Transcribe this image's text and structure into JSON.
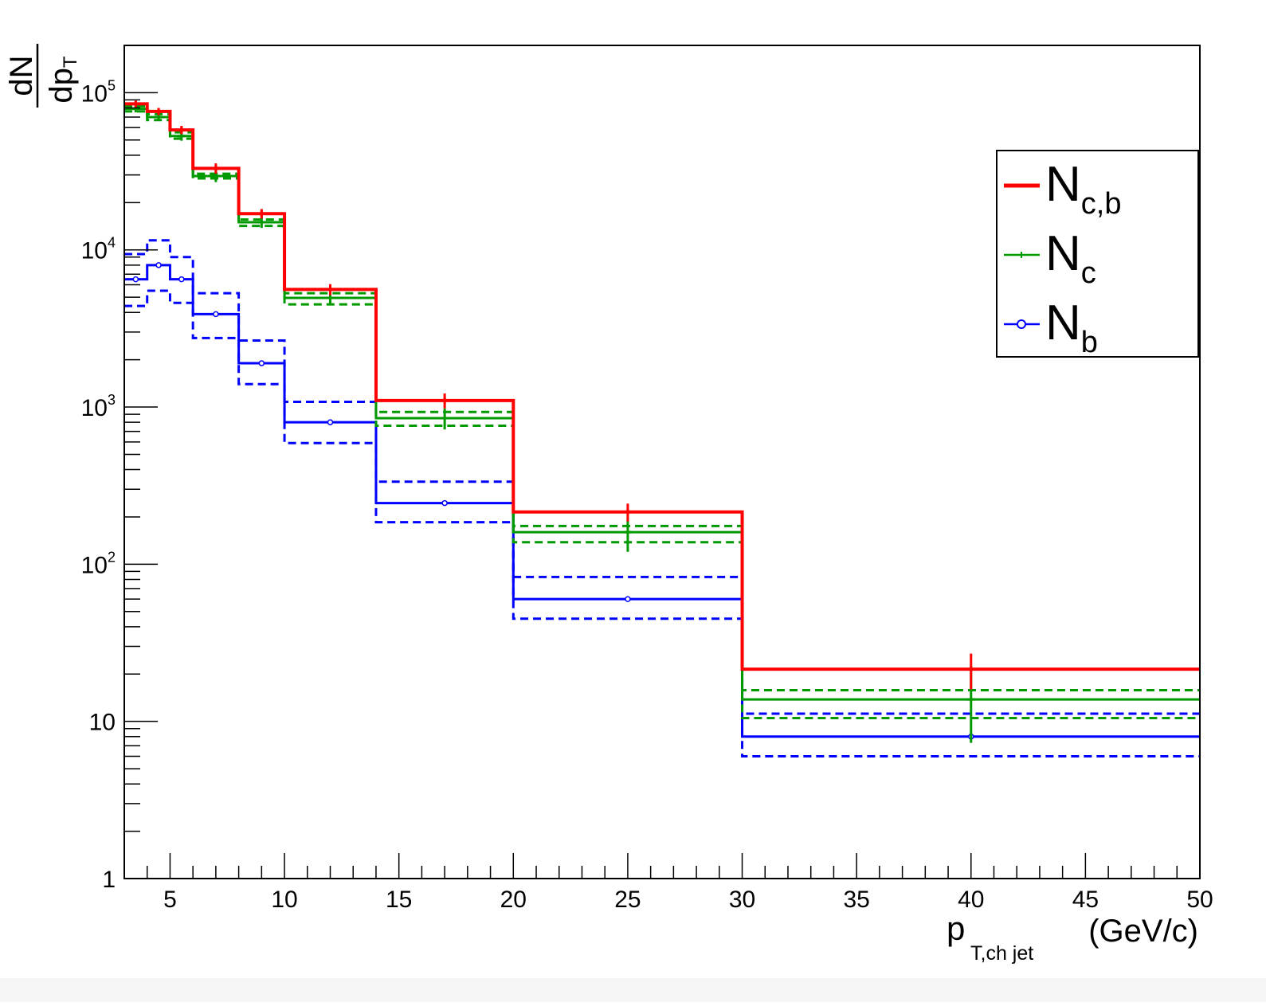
{
  "chart_data": {
    "type": "step",
    "xlabel": {
      "main": "p",
      "sub": "T,ch jet",
      "unit": "(GeV/c)"
    },
    "ylabel": {
      "numerator": "dN",
      "denominator_main": "dp",
      "denominator_sub": "T"
    },
    "xlim": [
      3,
      50
    ],
    "ylim": [
      1,
      200000
    ],
    "yscale": "log",
    "grid": false,
    "legend_position": "top-right",
    "x_ticks": [
      {
        "v": 5,
        "label": "5"
      },
      {
        "v": 10,
        "label": "10"
      },
      {
        "v": 15,
        "label": "15"
      },
      {
        "v": 20,
        "label": "20"
      },
      {
        "v": 25,
        "label": "25"
      },
      {
        "v": 30,
        "label": "30"
      },
      {
        "v": 35,
        "label": "35"
      },
      {
        "v": 40,
        "label": "40"
      },
      {
        "v": 45,
        "label": "45"
      },
      {
        "v": 50,
        "label": "50"
      }
    ],
    "y_ticks": [
      {
        "v": 1,
        "label": "1"
      },
      {
        "v": 10,
        "label": "10"
      },
      {
        "v": 100,
        "base": "10",
        "exp": "2"
      },
      {
        "v": 1000,
        "base": "10",
        "exp": "3"
      },
      {
        "v": 10000,
        "base": "10",
        "exp": "4"
      },
      {
        "v": 100000,
        "base": "10",
        "exp": "5"
      }
    ],
    "bin_edges": [
      3,
      4,
      5,
      6,
      8,
      10,
      14,
      20,
      30,
      50
    ],
    "series": [
      {
        "key": "ncb",
        "name": "N",
        "sub": "c,b",
        "color": "#ff0000",
        "marker": "none",
        "values": [
          85000,
          76000,
          58000,
          33000,
          17000,
          5600,
          1100,
          215,
          21.5
        ],
        "errors": [
          4000,
          4000,
          3500,
          2500,
          1200,
          450,
          120,
          28,
          5.5
        ],
        "syst_low": null,
        "syst_high": null
      },
      {
        "key": "nc",
        "name": "N",
        "sub": "c",
        "color": "#009900",
        "marker": "plus",
        "values": [
          79000,
          70000,
          53000,
          29500,
          15000,
          4950,
          850,
          160,
          13.8
        ],
        "errors": [
          4000,
          4000,
          3500,
          2500,
          1200,
          500,
          130,
          40,
          6.5
        ],
        "syst_low": [
          76000,
          67000,
          51000,
          28500,
          14200,
          4500,
          760,
          138,
          10.5
        ],
        "syst_high": [
          82000,
          73000,
          56000,
          30500,
          15600,
          5300,
          930,
          175,
          15.8
        ]
      },
      {
        "key": "nb",
        "name": "N",
        "sub": "b",
        "color": "#0000ff",
        "marker": "circle",
        "values": [
          6500,
          8000,
          6500,
          3900,
          1900,
          800,
          245,
          60,
          8
        ],
        "errors": null,
        "errors_none": true,
        "syst_low": [
          4400,
          5500,
          4600,
          2750,
          1400,
          590,
          185,
          45,
          6
        ],
        "syst_high": [
          9400,
          11500,
          9000,
          5300,
          2650,
          1080,
          335,
          83,
          11.2
        ]
      }
    ]
  }
}
